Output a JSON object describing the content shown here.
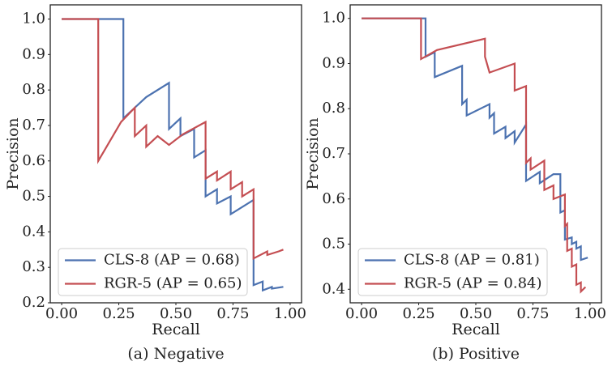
{
  "chart_data": [
    {
      "type": "line",
      "xlabel": "Recall",
      "ylabel": "Precision",
      "caption": "(a) Negative",
      "xlim": [
        -0.05,
        1.05
      ],
      "ylim": [
        0.2,
        1.04
      ],
      "xticks": [
        {
          "value": 0,
          "label": "0.00"
        },
        {
          "value": 0.25,
          "label": "0.25"
        },
        {
          "value": 0.5,
          "label": "0.50"
        },
        {
          "value": 0.75,
          "label": "0.75"
        },
        {
          "value": 1,
          "label": "1.00"
        }
      ],
      "yticks": [
        0.2,
        0.3,
        0.4,
        0.5,
        0.6,
        0.7,
        0.8,
        0.9,
        {
          "value": 1,
          "label": "1.0"
        }
      ],
      "legend": "lower left",
      "series": [
        {
          "name": "CLS-8 (AP = 0.68)",
          "color": "#4c72b0",
          "x": [
            0,
            0.27,
            0.27,
            0.32,
            0.37,
            0.47,
            0.47,
            0.52,
            0.52,
            0.58,
            0.58,
            0.63,
            0.63,
            0.68,
            0.68,
            0.74,
            0.74,
            0.84,
            0.84,
            0.88,
            0.88,
            0.92,
            0.92,
            0.97
          ],
          "values": [
            1,
            1,
            0.72,
            0.75,
            0.78,
            0.82,
            0.69,
            0.72,
            0.67,
            0.69,
            0.61,
            0.63,
            0.5,
            0.52,
            0.48,
            0.5,
            0.45,
            0.49,
            0.25,
            0.26,
            0.235,
            0.245,
            0.24,
            0.245
          ]
        },
        {
          "name": "RGR-5 (AP = 0.65)",
          "color": "#c44e52",
          "x": [
            0,
            0.16,
            0.16,
            0.26,
            0.32,
            0.32,
            0.37,
            0.37,
            0.42,
            0.47,
            0.53,
            0.63,
            0.63,
            0.68,
            0.68,
            0.74,
            0.74,
            0.79,
            0.79,
            0.84,
            0.84,
            0.9,
            0.9,
            0.95,
            0.97
          ],
          "values": [
            1,
            1,
            0.6,
            0.71,
            0.75,
            0.67,
            0.7,
            0.64,
            0.67,
            0.645,
            0.675,
            0.71,
            0.55,
            0.57,
            0.545,
            0.57,
            0.52,
            0.54,
            0.5,
            0.52,
            0.325,
            0.345,
            0.335,
            0.345,
            0.35
          ]
        }
      ]
    },
    {
      "type": "line",
      "xlabel": "Recall",
      "ylabel": "Precision",
      "caption": "(b) Positive",
      "xlim": [
        -0.05,
        1.05
      ],
      "ylim": [
        0.37,
        1.03
      ],
      "xticks": [
        {
          "value": 0,
          "label": "0.00"
        },
        {
          "value": 0.25,
          "label": "0.25"
        },
        {
          "value": 0.5,
          "label": "0.50"
        },
        {
          "value": 0.75,
          "label": "0.75"
        },
        {
          "value": 1,
          "label": "1.00"
        }
      ],
      "yticks": [
        0.4,
        0.5,
        0.6,
        0.7,
        0.8,
        0.9,
        {
          "value": 1,
          "label": "1.0"
        }
      ],
      "legend": "lower left",
      "series": [
        {
          "name": "CLS-8 (AP = 0.81)",
          "color": "#4c72b0",
          "x": [
            0,
            0.28,
            0.28,
            0.32,
            0.32,
            0.44,
            0.44,
            0.46,
            0.46,
            0.56,
            0.56,
            0.58,
            0.58,
            0.63,
            0.63,
            0.67,
            0.67,
            0.72,
            0.72,
            0.78,
            0.78,
            0.84,
            0.87,
            0.87,
            0.89,
            0.89,
            0.92,
            0.92,
            0.94,
            0.94,
            0.96,
            0.96,
            0.99
          ],
          "values": [
            1,
            1,
            0.915,
            0.925,
            0.87,
            0.895,
            0.81,
            0.82,
            0.785,
            0.81,
            0.78,
            0.79,
            0.745,
            0.76,
            0.735,
            0.75,
            0.725,
            0.765,
            0.64,
            0.66,
            0.635,
            0.655,
            0.655,
            0.57,
            0.575,
            0.51,
            0.515,
            0.5,
            0.505,
            0.49,
            0.495,
            0.465,
            0.47
          ]
        },
        {
          "name": "RGR-5 (AP = 0.84)",
          "color": "#c44e52",
          "x": [
            0,
            0.26,
            0.26,
            0.33,
            0.54,
            0.54,
            0.56,
            0.67,
            0.67,
            0.72,
            0.72,
            0.74,
            0.74,
            0.8,
            0.8,
            0.84,
            0.84,
            0.89,
            0.89,
            0.9,
            0.9,
            0.92,
            0.92,
            0.94,
            0.94,
            0.96,
            0.96,
            0.98
          ],
          "values": [
            1,
            1,
            0.91,
            0.93,
            0.955,
            0.915,
            0.88,
            0.9,
            0.84,
            0.85,
            0.68,
            0.69,
            0.665,
            0.685,
            0.62,
            0.63,
            0.6,
            0.61,
            0.54,
            0.545,
            0.485,
            0.49,
            0.45,
            0.455,
            0.41,
            0.415,
            0.395,
            0.405
          ]
        }
      ]
    }
  ]
}
